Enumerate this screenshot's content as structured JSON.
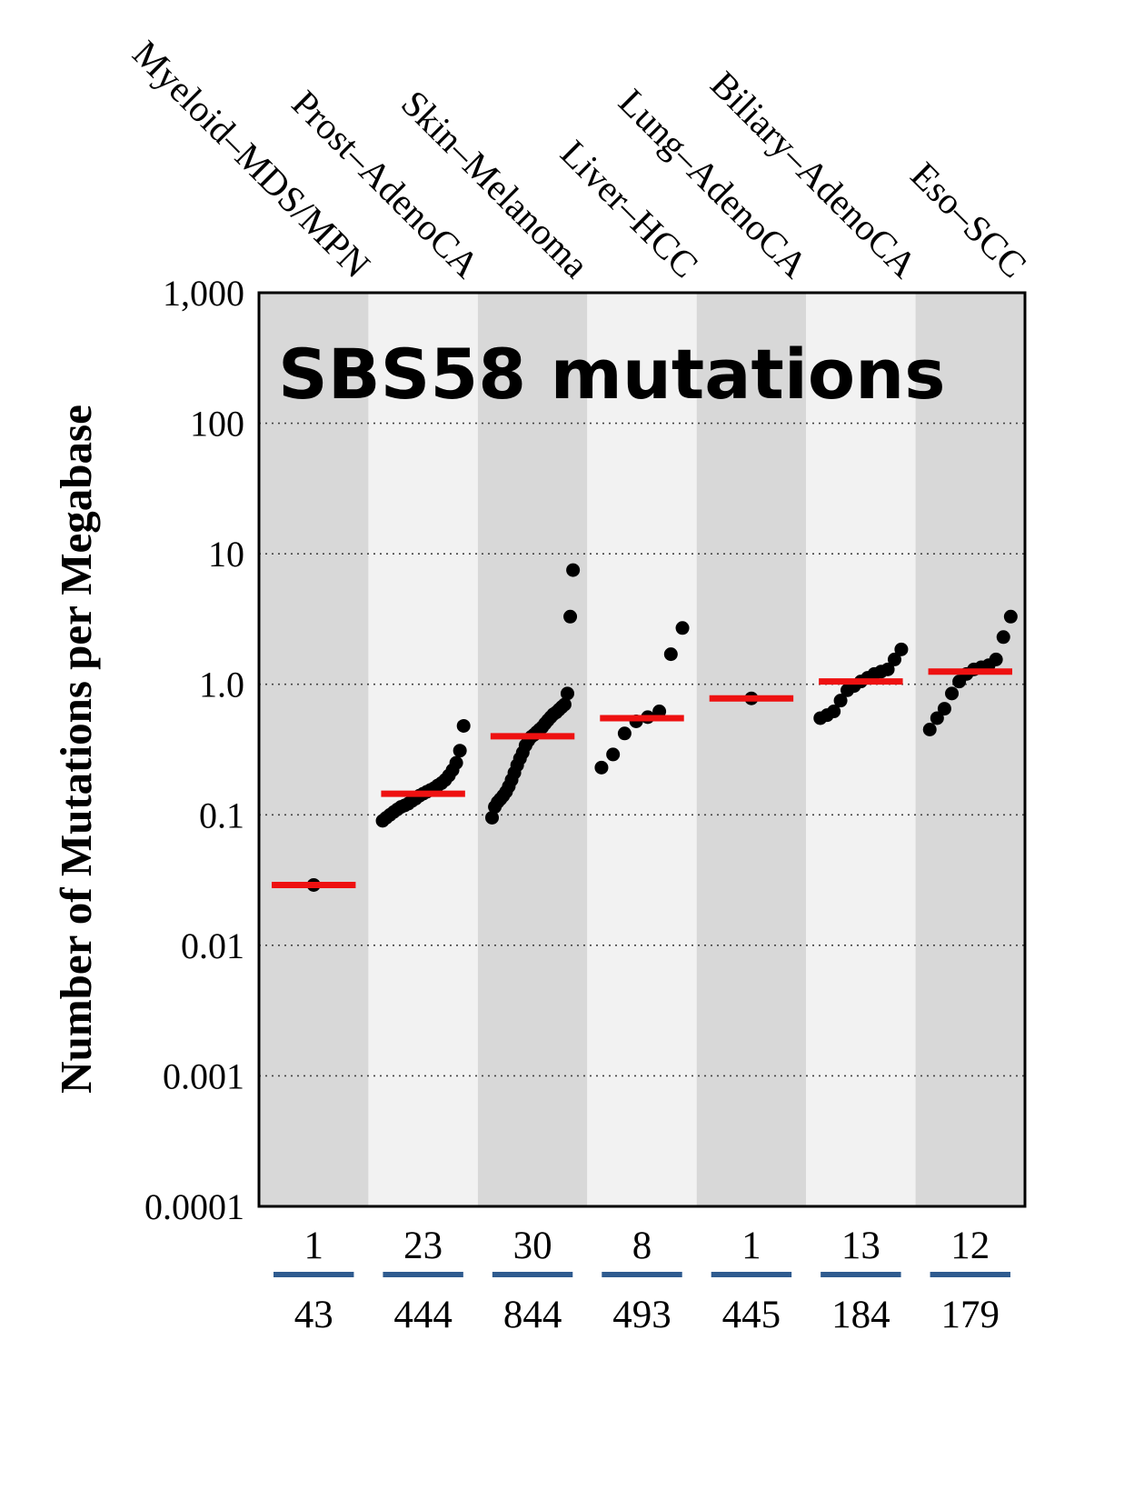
{
  "title": "SBS58 mutations",
  "ylabel": "Number of Mutations per Megabase",
  "colors": {
    "background": "#ffffff",
    "band_dark": "#d8d8d8",
    "band_light": "#f2f2f2",
    "median": "#ee1111",
    "point": "#000000",
    "divider": "#2f5b8f",
    "grid": "#444444",
    "frame": "#000000",
    "text": "#000000"
  },
  "chart_data": {
    "type": "scatter",
    "subtype": "strip-plot-with-median",
    "title": "SBS58 mutations",
    "xlabel": "",
    "ylabel": "Number of Mutations per Megabase",
    "yscale": "log",
    "ylim": [
      0.0001,
      1000
    ],
    "grid": "horizontal-dotted",
    "legend": "none",
    "yticks": [
      {
        "label": "1,000",
        "value": 1000
      },
      {
        "label": "100",
        "value": 100
      },
      {
        "label": "10",
        "value": 10
      },
      {
        "label": "1.0",
        "value": 1
      },
      {
        "label": "0.1",
        "value": 0.1
      },
      {
        "label": "0.01",
        "value": 0.01
      },
      {
        "label": "0.001",
        "value": 0.001
      },
      {
        "label": "0.0001",
        "value": 0.0001
      }
    ],
    "categories": [
      "Myeloid–MDS/MPN",
      "Prost–AdenoCA",
      "Skin–Melanoma",
      "Liver–HCC",
      "Lung–AdenoCA",
      "Biliary–AdenoCA",
      "Eso–SCC"
    ],
    "series": [
      {
        "label": "Myeloid–MDS/MPN",
        "n_with_signature": 1,
        "n_total": 43,
        "median": 0.029,
        "points": [
          0.029
        ]
      },
      {
        "label": "Prost–AdenoCA",
        "n_with_signature": 23,
        "n_total": 444,
        "median": 0.145,
        "points": [
          0.09,
          0.095,
          0.1,
          0.105,
          0.11,
          0.115,
          0.118,
          0.122,
          0.128,
          0.133,
          0.14,
          0.145,
          0.15,
          0.155,
          0.16,
          0.168,
          0.175,
          0.185,
          0.2,
          0.22,
          0.25,
          0.31,
          0.48
        ]
      },
      {
        "label": "Skin–Melanoma",
        "n_with_signature": 30,
        "n_total": 844,
        "median": 0.4,
        "points": [
          0.095,
          0.115,
          0.125,
          0.132,
          0.14,
          0.15,
          0.165,
          0.185,
          0.21,
          0.24,
          0.27,
          0.3,
          0.34,
          0.37,
          0.395,
          0.41,
          0.43,
          0.45,
          0.47,
          0.5,
          0.53,
          0.56,
          0.59,
          0.61,
          0.64,
          0.67,
          0.7,
          0.85,
          3.3,
          7.5
        ]
      },
      {
        "label": "Liver–HCC",
        "n_with_signature": 8,
        "n_total": 493,
        "median": 0.55,
        "points": [
          0.23,
          0.29,
          0.42,
          0.52,
          0.56,
          0.62,
          1.7,
          2.7
        ]
      },
      {
        "label": "Lung–AdenoCA",
        "n_with_signature": 1,
        "n_total": 445,
        "median": 0.78,
        "points": [
          0.78
        ]
      },
      {
        "label": "Biliary–AdenoCA",
        "n_with_signature": 13,
        "n_total": 184,
        "median": 1.05,
        "points": [
          0.55,
          0.58,
          0.62,
          0.75,
          0.9,
          0.97,
          1.05,
          1.12,
          1.2,
          1.25,
          1.3,
          1.55,
          1.85
        ]
      },
      {
        "label": "Eso–SCC",
        "n_with_signature": 12,
        "n_total": 179,
        "median": 1.25,
        "points": [
          0.45,
          0.55,
          0.65,
          0.85,
          1.05,
          1.2,
          1.3,
          1.35,
          1.4,
          1.55,
          2.3,
          3.3
        ]
      }
    ]
  }
}
